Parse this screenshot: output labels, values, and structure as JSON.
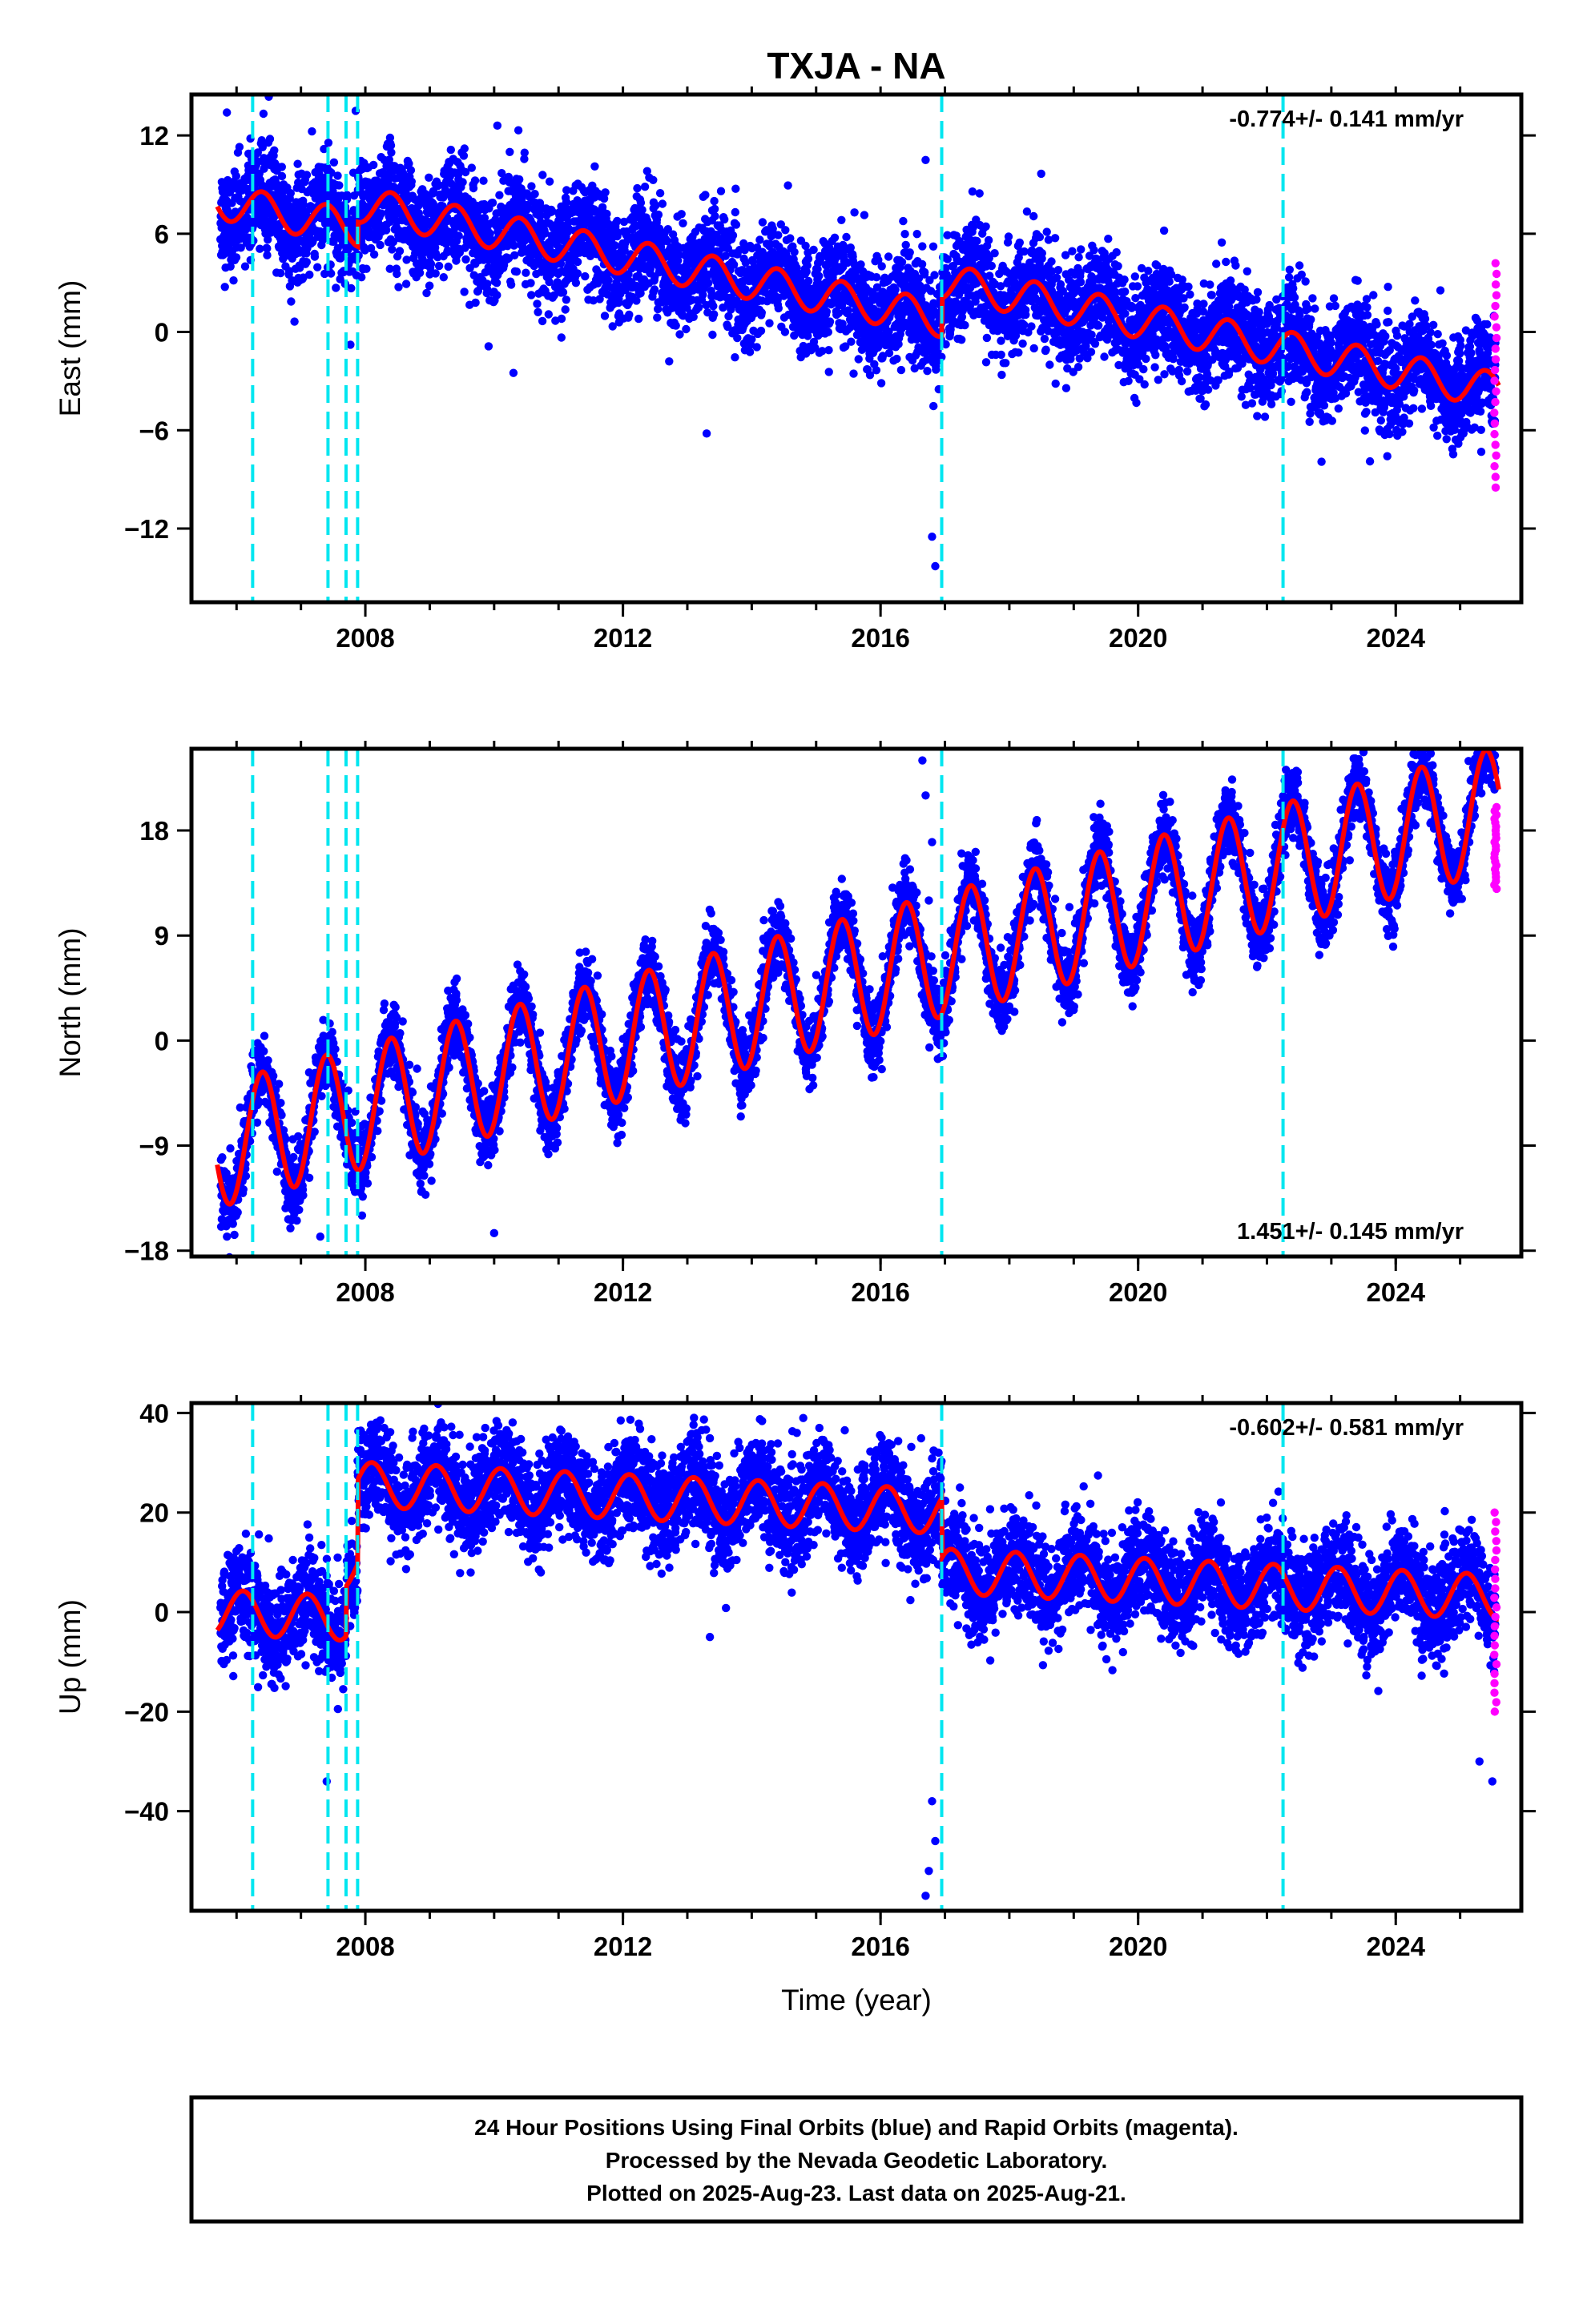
{
  "title": "TXJA - NA",
  "xlabel": "Time (year)",
  "footer": {
    "line1": "24 Hour Positions Using Final Orbits (blue) and Rapid Orbits (magenta).",
    "line2": "Processed by the Nevada Geodetic Laboratory.",
    "line3": "Plotted on 2025-Aug-23. Last data on 2025-Aug-21."
  },
  "colors": {
    "final_orbits": "#0000ff",
    "rapid_orbits": "#ff00ff",
    "model": "#ff0000",
    "steps": "#00e6f0"
  },
  "chart_data": [
    {
      "type": "scatter",
      "component": "East",
      "ylabel": "East (mm)",
      "xlim": [
        2005.3,
        2025.95
      ],
      "ylim": [
        -16.5,
        14.5
      ],
      "yticks": [
        12,
        6,
        0,
        -6,
        -12
      ],
      "xticks": [
        2008,
        2012,
        2016,
        2020,
        2024
      ],
      "rate_label": "-0.774+/- 0.141 mm/yr",
      "rate_position": "top-right",
      "trend": {
        "t0": 2005.7,
        "v0": 8.0,
        "rate": -0.774
      },
      "seasonal_amplitude": 1.1,
      "seasonal_phase": 0.4,
      "scatter": 1.6,
      "steps": [
        2006.25,
        2007.42,
        2007.7,
        2007.88,
        2016.95,
        2022.25
      ],
      "offsets": [
        {
          "t": 2007.88,
          "dv": 1.5
        },
        {
          "t": 2016.95,
          "dv": 2.3
        }
      ],
      "rapid_range": [
        -9.5,
        4.2
      ],
      "outliers": [
        {
          "x": 2005.85,
          "y": 13.4
        },
        {
          "x": 2007.85,
          "y": 13.5
        },
        {
          "x": 2010.05,
          "y": 12.6
        },
        {
          "x": 2016.7,
          "y": 10.5
        },
        {
          "x": 2016.85,
          "y": -14.3
        },
        {
          "x": 2016.8,
          "y": -12.5
        },
        {
          "x": 2010.3,
          "y": -2.5
        },
        {
          "x": 2013.3,
          "y": -6.2
        },
        {
          "x": 2023.6,
          "y": -7.9
        }
      ]
    },
    {
      "type": "scatter",
      "component": "North",
      "ylabel": "North (mm)",
      "xlim": [
        2005.3,
        2025.95
      ],
      "ylim": [
        -18.5,
        25.0
      ],
      "yticks": [
        18,
        9,
        0,
        -9,
        -18
      ],
      "xticks": [
        2008,
        2012,
        2016,
        2020,
        2024
      ],
      "rate_label": "1.451+/- 0.145 mm/yr",
      "rate_position": "bottom-right",
      "trend": {
        "t0": 2005.7,
        "v0": -9.0,
        "rate": 1.451
      },
      "seasonal_amplitude": 5.3,
      "seasonal_phase": 0.4,
      "scatter": 1.5,
      "steps": [
        2006.25,
        2007.42,
        2007.7,
        2007.88,
        2016.95,
        2022.25
      ],
      "offsets": [],
      "rapid_range": [
        13.0,
        20.0
      ],
      "outliers": [
        {
          "x": 2016.65,
          "y": 24.0
        },
        {
          "x": 2016.7,
          "y": 21.0
        },
        {
          "x": 2016.8,
          "y": 17.0
        },
        {
          "x": 2016.75,
          "y": 12.0
        },
        {
          "x": 2010.0,
          "y": -16.5
        },
        {
          "x": 2007.3,
          "y": -16.8
        }
      ]
    },
    {
      "type": "scatter",
      "component": "Up",
      "ylabel": "Up (mm)",
      "xlim": [
        2005.3,
        2025.95
      ],
      "ylim": [
        -60.0,
        42.0
      ],
      "yticks": [
        40,
        20,
        0,
        -20,
        -40
      ],
      "xticks": [
        2008,
        2012,
        2016,
        2020,
        2024
      ],
      "rate_label": "-0.602+/- 0.581 mm/yr",
      "rate_position": "top-right",
      "trend": {
        "t0": 2005.7,
        "v0": 0.0,
        "rate": -0.602
      },
      "seasonal_amplitude": 4.5,
      "seasonal_phase": 0.1,
      "scatter": 5.0,
      "steps": [
        2006.25,
        2007.42,
        2007.7,
        2007.88,
        2016.95,
        2022.25
      ],
      "offsets": [
        {
          "t": 2007.7,
          "dv": 10.0
        },
        {
          "t": 2007.88,
          "dv": 17.0
        },
        {
          "t": 2016.95,
          "dv": -12.0
        }
      ],
      "rapid_range": [
        -20.0,
        20.0
      ],
      "outliers": [
        {
          "x": 2014.8,
          "y": 39.0
        },
        {
          "x": 2014.7,
          "y": 36.0
        },
        {
          "x": 2016.7,
          "y": -57.0
        },
        {
          "x": 2016.75,
          "y": -52.0
        },
        {
          "x": 2016.85,
          "y": -46.0
        },
        {
          "x": 2016.8,
          "y": -38.0
        },
        {
          "x": 2007.4,
          "y": -34.0
        },
        {
          "x": 2025.5,
          "y": -34.0
        },
        {
          "x": 2009.8,
          "y": 24.0
        },
        {
          "x": 2013.35,
          "y": -5.0
        },
        {
          "x": 2025.3,
          "y": -30.0
        }
      ]
    }
  ]
}
